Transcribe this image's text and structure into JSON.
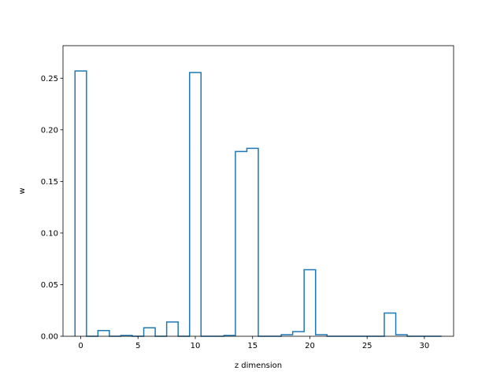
{
  "chart_data": {
    "type": "step",
    "xlabel": "z dimension",
    "ylabel": "w",
    "xlim": [
      -1.55,
      32.55
    ],
    "ylim": [
      0,
      0.2815
    ],
    "xticks": [
      0,
      5,
      10,
      15,
      20,
      25,
      30
    ],
    "xtick_labels": [
      "0",
      "5",
      "10",
      "15",
      "20",
      "25",
      "30"
    ],
    "yticks": [
      0.0,
      0.05,
      0.1,
      0.15,
      0.2,
      0.25
    ],
    "ytick_labels": [
      "0.00",
      "0.05",
      "0.10",
      "0.15",
      "0.20",
      "0.25"
    ],
    "grid": false,
    "line_color": "#1f77b4",
    "series": [
      {
        "x": [
          0,
          1,
          2,
          3,
          4,
          5,
          6,
          7,
          8,
          9,
          10,
          11,
          12,
          13,
          14,
          15,
          16,
          17,
          18,
          19,
          20,
          21,
          22,
          23,
          24,
          25,
          26,
          27,
          28,
          29,
          30,
          31
        ],
        "values": [
          0.257,
          0.0,
          0.0055,
          0.0,
          0.0008,
          0.0,
          0.0082,
          0.0,
          0.0138,
          0.0,
          0.2555,
          0.0,
          0.0,
          0.0008,
          0.179,
          0.182,
          0.0,
          0.0,
          0.0015,
          0.0045,
          0.0645,
          0.0015,
          0.0,
          0.0,
          0.0,
          0.0,
          0.0,
          0.0225,
          0.0015,
          0.0,
          0.0,
          0.0
        ]
      }
    ]
  }
}
